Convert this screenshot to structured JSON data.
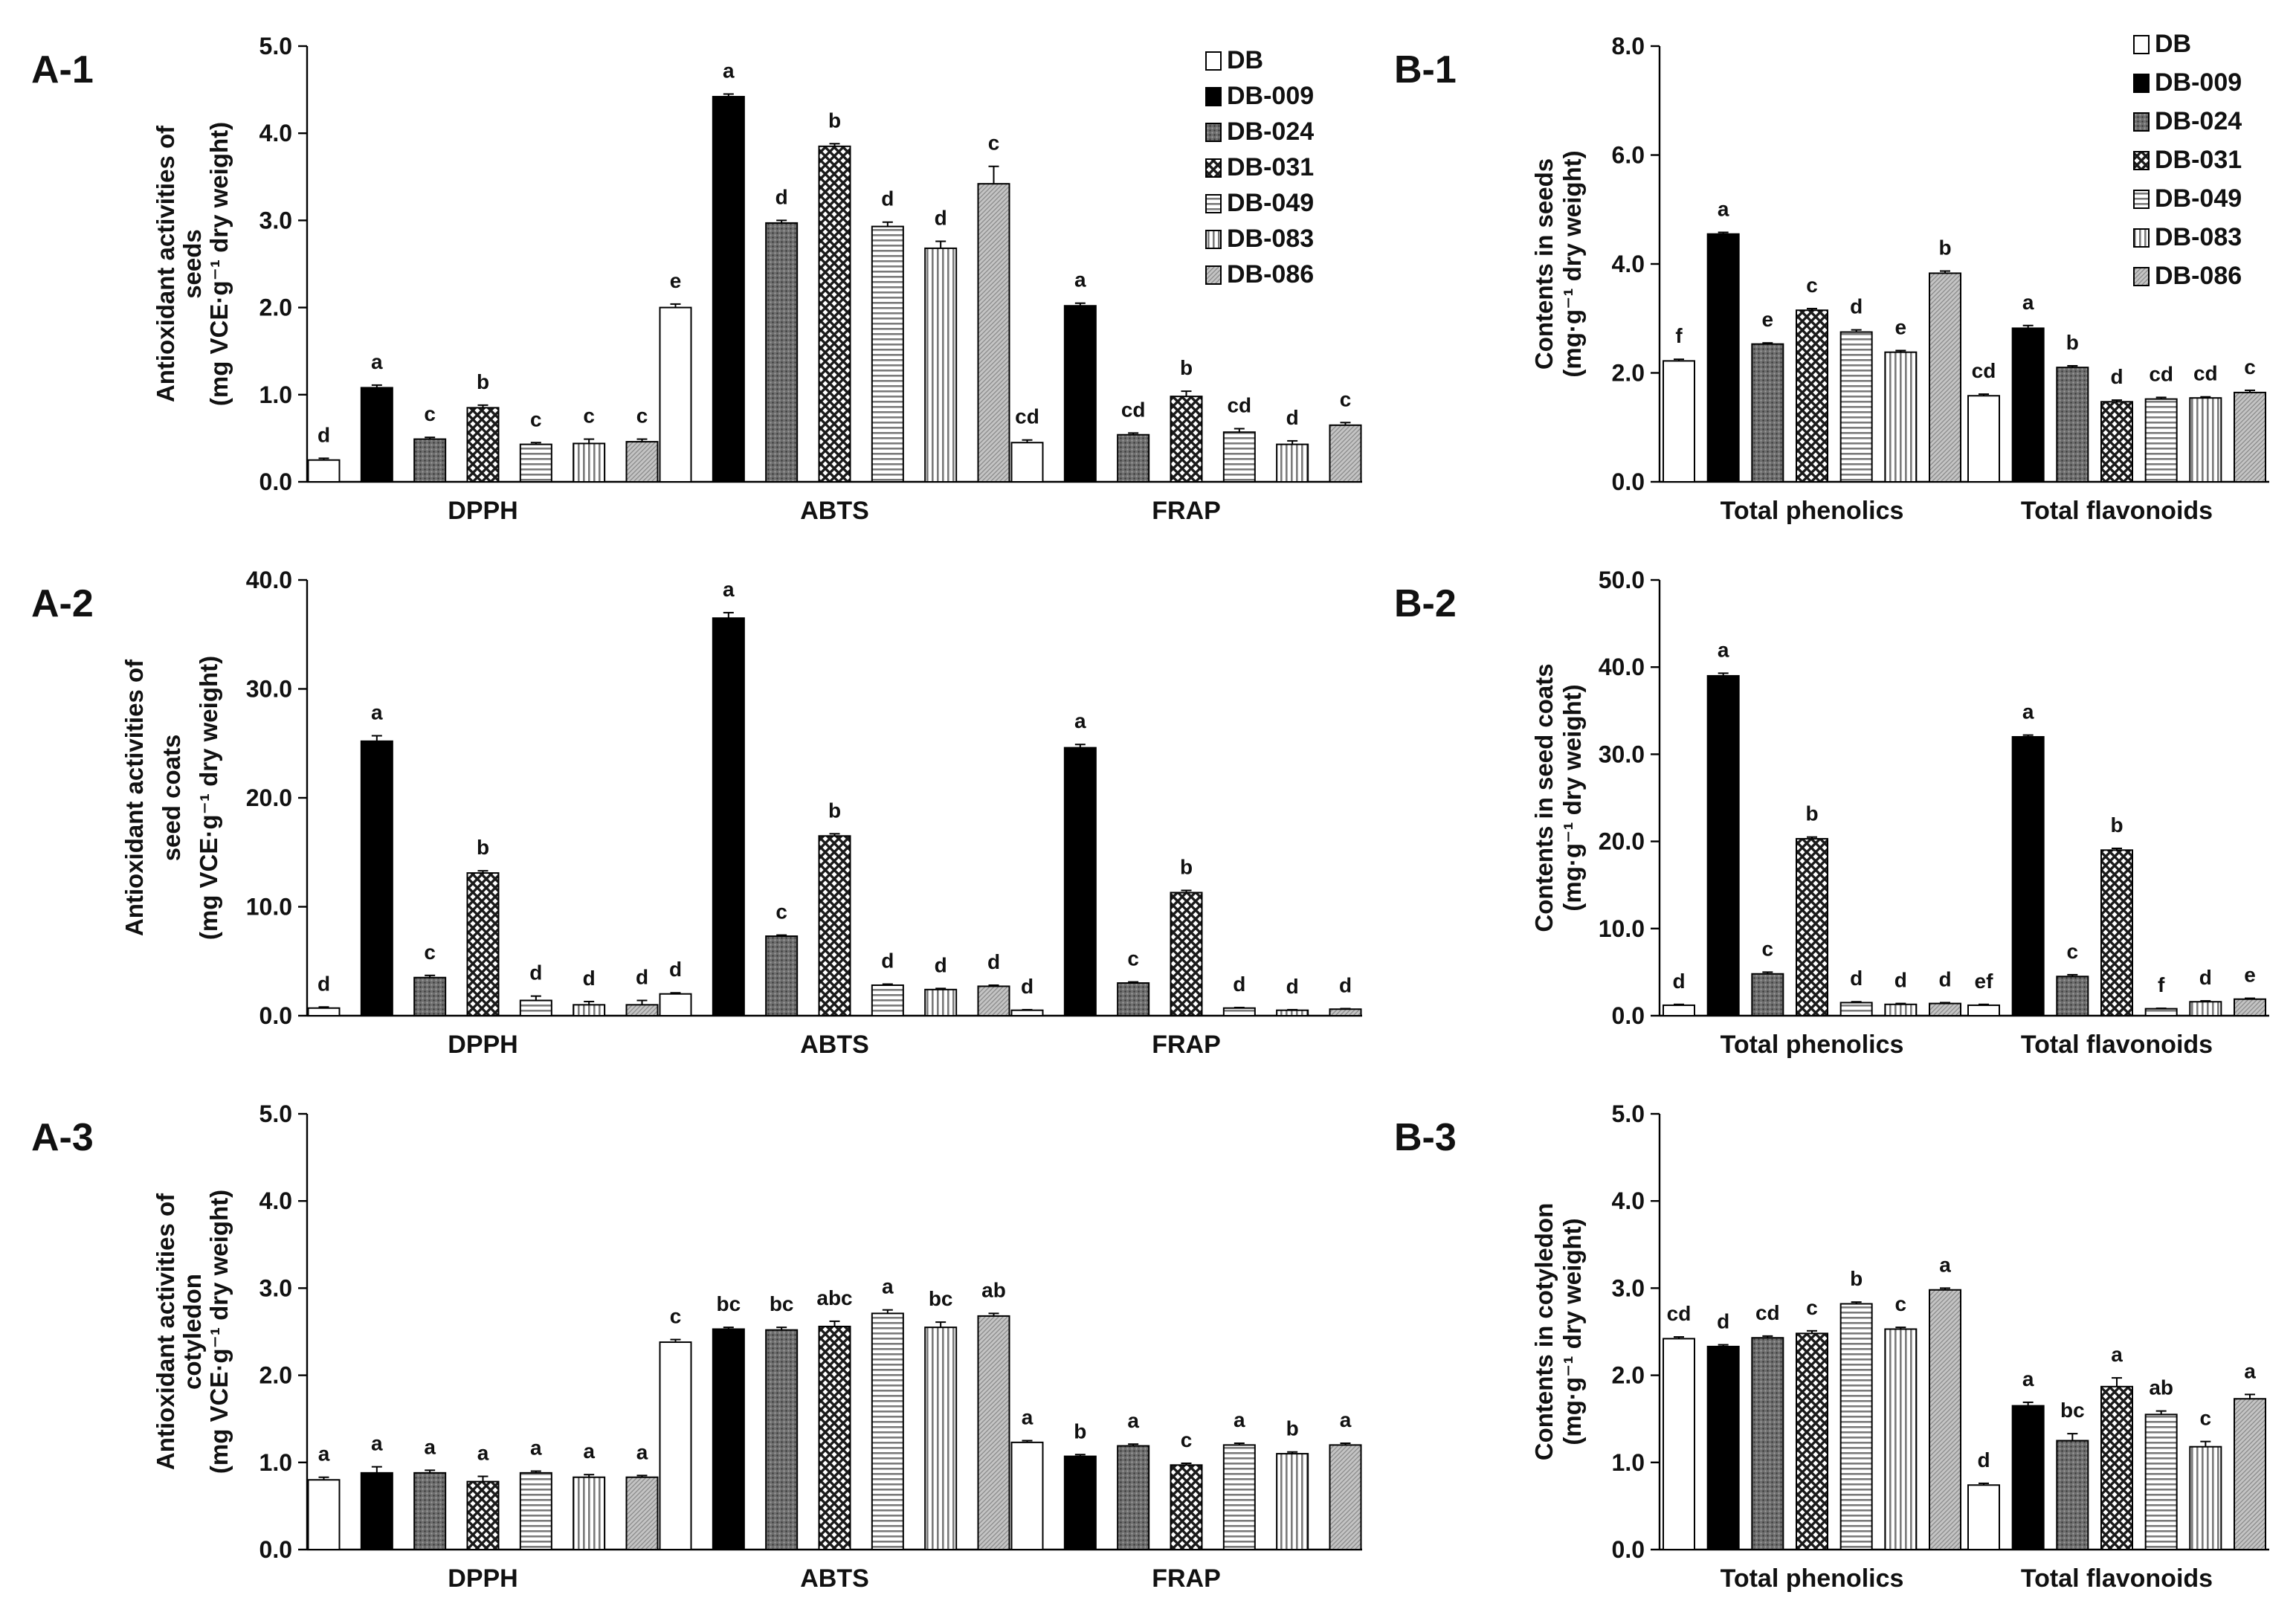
{
  "legend_labels": [
    "DB",
    "DB-009",
    "DB-024",
    "DB-031",
    "DB-049",
    "DB-083",
    "DB-086"
  ],
  "chart_data": [
    {
      "id": "A1",
      "panel_label": "A-1",
      "type": "bar",
      "ylabel_lines": [
        "Antioxidant activities of",
        "seeds",
        "(mg VCE·g⁻¹ dry weight)"
      ],
      "ylim": [
        0,
        5
      ],
      "yticks": [
        "0.0",
        "1.0",
        "2.0",
        "3.0",
        "4.0",
        "5.0"
      ],
      "categories": [
        "DPPH",
        "ABTS",
        "FRAP"
      ],
      "legend": "top-right",
      "series": [
        {
          "name": "DB",
          "values": [
            0.25,
            2.0,
            0.45
          ],
          "errors": [
            0.02,
            0.04,
            0.03
          ],
          "letters": [
            "d",
            "e",
            "cd"
          ]
        },
        {
          "name": "DB-009",
          "values": [
            1.08,
            4.42,
            2.02
          ],
          "errors": [
            0.03,
            0.03,
            0.03
          ],
          "letters": [
            "a",
            "a",
            "a"
          ]
        },
        {
          "name": "DB-024",
          "values": [
            0.49,
            2.97,
            0.54
          ],
          "errors": [
            0.02,
            0.03,
            0.02
          ],
          "letters": [
            "c",
            "d",
            "cd"
          ]
        },
        {
          "name": "DB-031",
          "values": [
            0.85,
            3.85,
            0.98
          ],
          "errors": [
            0.03,
            0.03,
            0.06
          ],
          "letters": [
            "b",
            "b",
            "b"
          ]
        },
        {
          "name": "DB-049",
          "values": [
            0.43,
            2.93,
            0.57
          ],
          "errors": [
            0.02,
            0.05,
            0.04
          ],
          "letters": [
            "c",
            "d",
            "cd"
          ]
        },
        {
          "name": "DB-083",
          "values": [
            0.44,
            2.68,
            0.43
          ],
          "errors": [
            0.05,
            0.08,
            0.04
          ],
          "letters": [
            "c",
            "d",
            "d"
          ]
        },
        {
          "name": "DB-086",
          "values": [
            0.46,
            3.42,
            0.65
          ],
          "errors": [
            0.03,
            0.2,
            0.03
          ],
          "letters": [
            "c",
            "c",
            "c"
          ]
        }
      ]
    },
    {
      "id": "A2",
      "panel_label": "A-2",
      "type": "bar",
      "ylabel_lines": [
        "Antioxidant activities of",
        "seed coats",
        "(mg VCE·g⁻¹ dry weight)"
      ],
      "ylim": [
        0,
        40
      ],
      "yticks": [
        "0.0",
        "10.0",
        "20.0",
        "30.0",
        "40.0"
      ],
      "categories": [
        "DPPH",
        "ABTS",
        "FRAP"
      ],
      "series": [
        {
          "name": "DB",
          "values": [
            0.7,
            2.0,
            0.5
          ],
          "errors": [
            0.1,
            0.1,
            0.05
          ],
          "letters": [
            "d",
            "d",
            "d"
          ]
        },
        {
          "name": "DB-009",
          "values": [
            25.2,
            36.5,
            24.6
          ],
          "errors": [
            0.5,
            0.5,
            0.3
          ],
          "letters": [
            "a",
            "a",
            "a"
          ]
        },
        {
          "name": "DB-024",
          "values": [
            3.5,
            7.3,
            3.0
          ],
          "errors": [
            0.2,
            0.1,
            0.1
          ],
          "letters": [
            "c",
            "c",
            "c"
          ]
        },
        {
          "name": "DB-031",
          "values": [
            13.1,
            16.5,
            11.3
          ],
          "errors": [
            0.2,
            0.2,
            0.2
          ],
          "letters": [
            "b",
            "b",
            "b"
          ]
        },
        {
          "name": "DB-049",
          "values": [
            1.4,
            2.8,
            0.7
          ],
          "errors": [
            0.4,
            0.1,
            0.05
          ],
          "letters": [
            "d",
            "d",
            "d"
          ]
        },
        {
          "name": "DB-083",
          "values": [
            1.0,
            2.4,
            0.5
          ],
          "errors": [
            0.3,
            0.1,
            0.05
          ],
          "letters": [
            "d",
            "d",
            "d"
          ]
        },
        {
          "name": "DB-086",
          "values": [
            1.0,
            2.7,
            0.6
          ],
          "errors": [
            0.4,
            0.1,
            0.05
          ],
          "letters": [
            "d",
            "d",
            "d"
          ]
        }
      ]
    },
    {
      "id": "A3",
      "panel_label": "A-3",
      "type": "bar",
      "ylabel_lines": [
        "Antioxidant activities of",
        "cotyledon",
        "(mg VCE·g⁻¹ dry weight)"
      ],
      "ylim": [
        0,
        5
      ],
      "yticks": [
        "0.0",
        "1.0",
        "2.0",
        "3.0",
        "4.0",
        "5.0"
      ],
      "categories": [
        "DPPH",
        "ABTS",
        "FRAP"
      ],
      "series": [
        {
          "name": "DB",
          "values": [
            0.8,
            2.38,
            1.23
          ],
          "errors": [
            0.03,
            0.03,
            0.02
          ],
          "letters": [
            "a",
            "c",
            "a"
          ]
        },
        {
          "name": "DB-009",
          "values": [
            0.88,
            2.53,
            1.07
          ],
          "errors": [
            0.07,
            0.02,
            0.02
          ],
          "letters": [
            "a",
            "bc",
            "b"
          ]
        },
        {
          "name": "DB-024",
          "values": [
            0.88,
            2.52,
            1.19
          ],
          "errors": [
            0.03,
            0.03,
            0.02
          ],
          "letters": [
            "a",
            "bc",
            "a"
          ]
        },
        {
          "name": "DB-031",
          "values": [
            0.78,
            2.56,
            0.97
          ],
          "errors": [
            0.06,
            0.06,
            0.02
          ],
          "letters": [
            "a",
            "abc",
            "c"
          ]
        },
        {
          "name": "DB-049",
          "values": [
            0.88,
            2.71,
            1.2
          ],
          "errors": [
            0.02,
            0.04,
            0.02
          ],
          "letters": [
            "a",
            "a",
            "a"
          ]
        },
        {
          "name": "DB-083",
          "values": [
            0.83,
            2.55,
            1.1
          ],
          "errors": [
            0.03,
            0.06,
            0.02
          ],
          "letters": [
            "a",
            "bc",
            "b"
          ]
        },
        {
          "name": "DB-086",
          "values": [
            0.83,
            2.68,
            1.2
          ],
          "errors": [
            0.02,
            0.03,
            0.02
          ],
          "letters": [
            "a",
            "ab",
            "a"
          ]
        }
      ]
    },
    {
      "id": "B1",
      "panel_label": "B-1",
      "type": "bar",
      "ylabel_lines": [
        "Contents in seeds",
        "(mg·g⁻¹ dry weight)"
      ],
      "ylim": [
        0,
        8
      ],
      "yticks": [
        "0.0",
        "2.0",
        "4.0",
        "6.0",
        "8.0"
      ],
      "categories": [
        "Total phenolics",
        "Total flavonoids"
      ],
      "legend": "top-right",
      "series": [
        {
          "name": "DB",
          "values": [
            2.22,
            1.58
          ],
          "errors": [
            0.03,
            0.03
          ],
          "letters": [
            "f",
            "cd"
          ]
        },
        {
          "name": "DB-009",
          "values": [
            4.55,
            2.82
          ],
          "errors": [
            0.03,
            0.05
          ],
          "letters": [
            "a",
            "a"
          ]
        },
        {
          "name": "DB-024",
          "values": [
            2.53,
            2.1
          ],
          "errors": [
            0.02,
            0.03
          ],
          "letters": [
            "e",
            "b"
          ]
        },
        {
          "name": "DB-031",
          "values": [
            3.15,
            1.47
          ],
          "errors": [
            0.03,
            0.03
          ],
          "letters": [
            "c",
            "d"
          ]
        },
        {
          "name": "DB-049",
          "values": [
            2.75,
            1.52
          ],
          "errors": [
            0.04,
            0.03
          ],
          "letters": [
            "d",
            "cd"
          ]
        },
        {
          "name": "DB-083",
          "values": [
            2.38,
            1.54
          ],
          "errors": [
            0.03,
            0.02
          ],
          "letters": [
            "e",
            "cd"
          ]
        },
        {
          "name": "DB-086",
          "values": [
            3.83,
            1.64
          ],
          "errors": [
            0.04,
            0.04
          ],
          "letters": [
            "b",
            "c"
          ]
        }
      ]
    },
    {
      "id": "B2",
      "panel_label": "B-2",
      "type": "bar",
      "ylabel_lines": [
        "Contents in seed coats",
        "(mg·g⁻¹ dry weight)"
      ],
      "ylim": [
        0,
        50
      ],
      "yticks": [
        "0.0",
        "10.0",
        "20.0",
        "30.0",
        "40.0",
        "50.0"
      ],
      "categories": [
        "Total phenolics",
        "Total flavonoids"
      ],
      "series": [
        {
          "name": "DB",
          "values": [
            1.2,
            1.2
          ],
          "errors": [
            0.1,
            0.1
          ],
          "letters": [
            "d",
            "ef"
          ]
        },
        {
          "name": "DB-009",
          "values": [
            39.0,
            32.0
          ],
          "errors": [
            0.3,
            0.2
          ],
          "letters": [
            "a",
            "a"
          ]
        },
        {
          "name": "DB-024",
          "values": [
            4.8,
            4.5
          ],
          "errors": [
            0.2,
            0.2
          ],
          "letters": [
            "c",
            "c"
          ]
        },
        {
          "name": "DB-031",
          "values": [
            20.3,
            19.0
          ],
          "errors": [
            0.2,
            0.2
          ],
          "letters": [
            "b",
            "b"
          ]
        },
        {
          "name": "DB-049",
          "values": [
            1.5,
            0.8
          ],
          "errors": [
            0.1,
            0.05
          ],
          "letters": [
            "d",
            "f"
          ]
        },
        {
          "name": "DB-083",
          "values": [
            1.3,
            1.6
          ],
          "errors": [
            0.1,
            0.1
          ],
          "letters": [
            "d",
            "d"
          ]
        },
        {
          "name": "DB-086",
          "values": [
            1.4,
            1.9
          ],
          "errors": [
            0.1,
            0.1
          ],
          "letters": [
            "d",
            "e"
          ]
        }
      ]
    },
    {
      "id": "B3",
      "panel_label": "B-3",
      "type": "bar",
      "ylabel_lines": [
        "Contents in cotyledon",
        "(mg·g⁻¹ dry weight)"
      ],
      "ylim": [
        0,
        5
      ],
      "yticks": [
        "0.0",
        "1.0",
        "2.0",
        "3.0",
        "4.0",
        "5.0"
      ],
      "categories": [
        "Total phenolics",
        "Total flavonoids"
      ],
      "series": [
        {
          "name": "DB",
          "values": [
            2.42,
            0.74
          ],
          "errors": [
            0.02,
            0.02
          ],
          "letters": [
            "cd",
            "d"
          ]
        },
        {
          "name": "DB-009",
          "values": [
            2.33,
            1.65
          ],
          "errors": [
            0.02,
            0.04
          ],
          "letters": [
            "d",
            "a"
          ]
        },
        {
          "name": "DB-024",
          "values": [
            2.43,
            1.25
          ],
          "errors": [
            0.02,
            0.08
          ],
          "letters": [
            "cd",
            "bc"
          ]
        },
        {
          "name": "DB-031",
          "values": [
            2.48,
            1.87
          ],
          "errors": [
            0.03,
            0.1
          ],
          "letters": [
            "c",
            "a"
          ]
        },
        {
          "name": "DB-049",
          "values": [
            2.82,
            1.55
          ],
          "errors": [
            0.02,
            0.04
          ],
          "letters": [
            "b",
            "ab"
          ]
        },
        {
          "name": "DB-083",
          "values": [
            2.53,
            1.18
          ],
          "errors": [
            0.02,
            0.06
          ],
          "letters": [
            "c",
            "c"
          ]
        },
        {
          "name": "DB-086",
          "values": [
            2.98,
            1.73
          ],
          "errors": [
            0.02,
            0.05
          ],
          "letters": [
            "a",
            "a"
          ]
        }
      ]
    }
  ]
}
